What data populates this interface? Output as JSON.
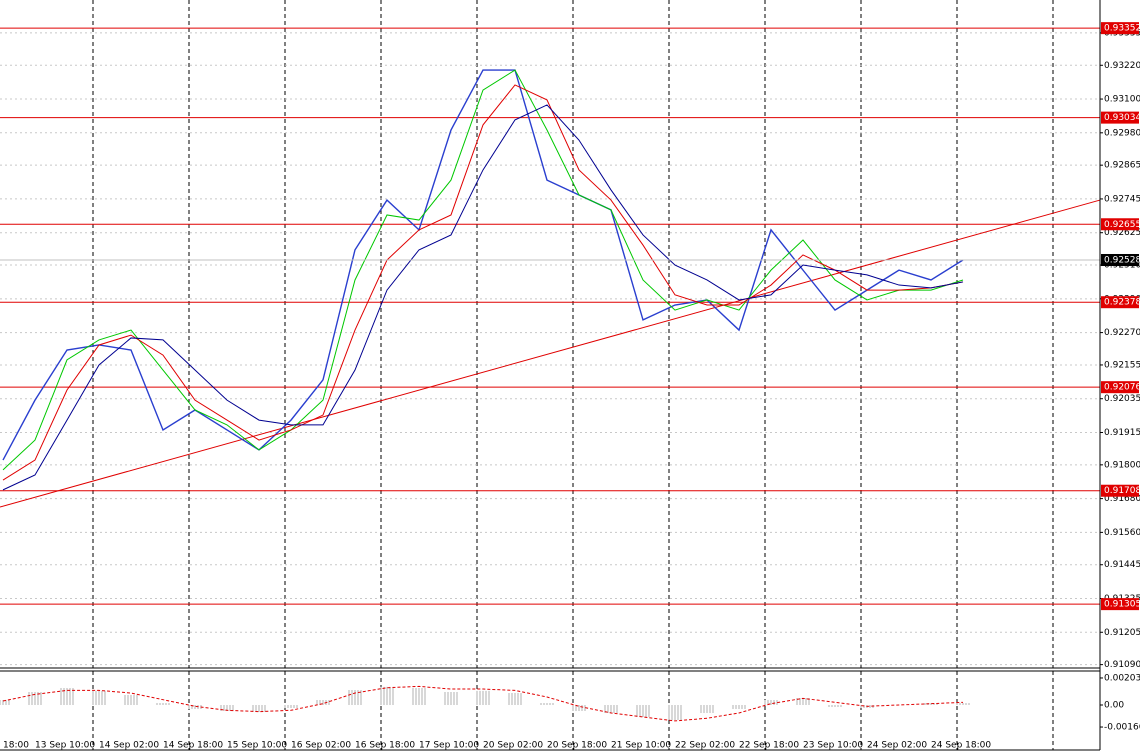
{
  "chart_data": [
    {
      "type": "line",
      "categories": [
        "18:00",
        "13 Sep 10:00",
        null,
        "14 Sep 02:00",
        null,
        "14 Sep 18:00",
        null,
        "15 Sep 10:00",
        null,
        "16 Sep 02:00",
        null,
        "16 Sep 18:00",
        null,
        "17 Sep 10:00",
        null,
        "20 Sep 02:00",
        null,
        "20 Sep 18:00",
        null,
        "21 Sep 10:00",
        null,
        "22 Sep 02:00",
        null,
        "22 Sep 18:00",
        null,
        "23 Sep 10:00",
        null,
        "24 Sep 02:00",
        null,
        "24 Sep 18:00",
        null
      ],
      "series": [
        {
          "color": "#2a3fcf",
          "values": [
            0.91817,
            0.9203,
            0.92208,
            0.92226,
            0.92208,
            0.91924,
            0.91995,
            0.91924,
            0.91853,
            0.91959,
            0.92102,
            0.92564,
            0.92741,
            0.92635,
            0.9299,
            0.93203,
            0.93203,
            0.92812,
            0.92759,
            0.92706,
            0.92315,
            0.92368,
            0.92386,
            0.92279,
            0.92635,
            0.92492,
            0.9235,
            0.92421,
            0.92492,
            0.92457,
            0.92528
          ]
        },
        {
          "color": "#00c800",
          "values": [
            0.91782,
            0.91888,
            0.92173,
            0.92244,
            0.92279,
            0.92137,
            0.91995,
            0.91942,
            0.91853,
            0.91924,
            0.9203,
            0.92457,
            0.92688,
            0.9267,
            0.92812,
            0.93132,
            0.93203,
            0.9299,
            0.92759,
            0.92706,
            0.92457,
            0.9235,
            0.92386,
            0.9235,
            0.92492,
            0.92599,
            0.92457,
            0.92386,
            0.92421,
            0.92421,
            0.92457
          ]
        },
        {
          "color": "#e00000",
          "values": [
            0.91746,
            0.91817,
            0.92066,
            0.92226,
            0.92261,
            0.9219,
            0.9203,
            0.91959,
            0.91888,
            0.91924,
            0.91977,
            0.92279,
            0.92528,
            0.92635,
            0.92688,
            0.93008,
            0.9315,
            0.93097,
            0.92848,
            0.92741,
            0.92581,
            0.92404,
            0.92368,
            0.92368,
            0.92439,
            0.92546,
            0.92492,
            0.92421,
            0.92421,
            0.92429,
            0.9245
          ]
        },
        {
          "color": "#000090",
          "values": [
            0.91711,
            0.91764,
            0.91959,
            0.92155,
            0.92251,
            0.92244,
            0.92137,
            0.9203,
            0.91959,
            0.91942,
            0.91942,
            0.92137,
            0.92421,
            0.92564,
            0.92617,
            0.92848,
            0.93026,
            0.93079,
            0.92954,
            0.92777,
            0.92617,
            0.9251,
            0.92457,
            0.92386,
            0.92404,
            0.9251,
            0.92492,
            0.92475,
            0.92439,
            0.92429,
            0.9245
          ]
        }
      ],
      "levels": [
        0.93352,
        0.93034,
        0.92655,
        0.92378,
        0.92076,
        0.91708,
        0.91305
      ],
      "level_color": "#e00000",
      "trendline": [
        0.9165,
        0.92741
      ],
      "ylim": [
        0.91078,
        0.93452
      ],
      "yticks": [
        0.93335,
        {
          "value": 0.9322,
          "label": "0.93220"
        },
        {
          "value": 0.931,
          "label": "0.93100"
        },
        {
          "value": 0.9298,
          "label": "0.92980"
        },
        0.92865,
        0.92745,
        0.92625,
        {
          "value": 0.9251,
          "label": "0.92510"
        },
        {
          "value": 0.9239,
          "label": "0.92390"
        },
        {
          "value": 0.9227,
          "label": "0.92270"
        },
        0.92155,
        0.92035,
        0.91915,
        {
          "value": 0.918,
          "label": "0.91800"
        },
        {
          "value": 0.9168,
          "label": "0.91680"
        },
        {
          "value": 0.9156,
          "label": "0.91560"
        },
        0.91445,
        0.91325,
        0.91205,
        {
          "value": 0.9109,
          "label": "0.91090"
        }
      ],
      "grid": true
    },
    {
      "type": "bar",
      "color": "#b0b0b0",
      "values": [
        0.00038,
        0.00098,
        0.00128,
        0.00106,
        0.00075,
        0.00015,
        -0.0003,
        -0.00045,
        -0.00053,
        -0.00023,
        0.00038,
        0.00113,
        0.00136,
        0.00128,
        0.00098,
        0.00106,
        0.0009,
        0.00015,
        -0.00045,
        -0.0006,
        -0.0009,
        -0.00113,
        -0.0006,
        -0.0003,
        0.00038,
        0.00053,
        -0.00015,
        -0.00023,
        0,
        0.00015,
        0.00015
      ],
      "signal": {
        "color": "#e00000",
        "values": [
          0.0003,
          0.0008,
          0.0011,
          0.0011,
          0.0009,
          0.0004,
          -0.0001,
          -0.0004,
          -0.0005,
          -0.0004,
          0.0001,
          0.0009,
          0.0013,
          0.0014,
          0.0012,
          0.0012,
          0.0011,
          0.0006,
          -0.0001,
          -0.0006,
          -0.0009,
          -0.0012,
          -0.001,
          -0.0006,
          0.0001,
          0.0005,
          0.0002,
          -0.0001,
          0,
          0.0001,
          0.0002
        ]
      },
      "ylim": [
        -0.00339,
        0.00256
      ],
      "yticks": [
        0.002035,
        {
          "value": 0,
          "label": "0.00"
        },
        -0.00166
      ]
    }
  ]
}
